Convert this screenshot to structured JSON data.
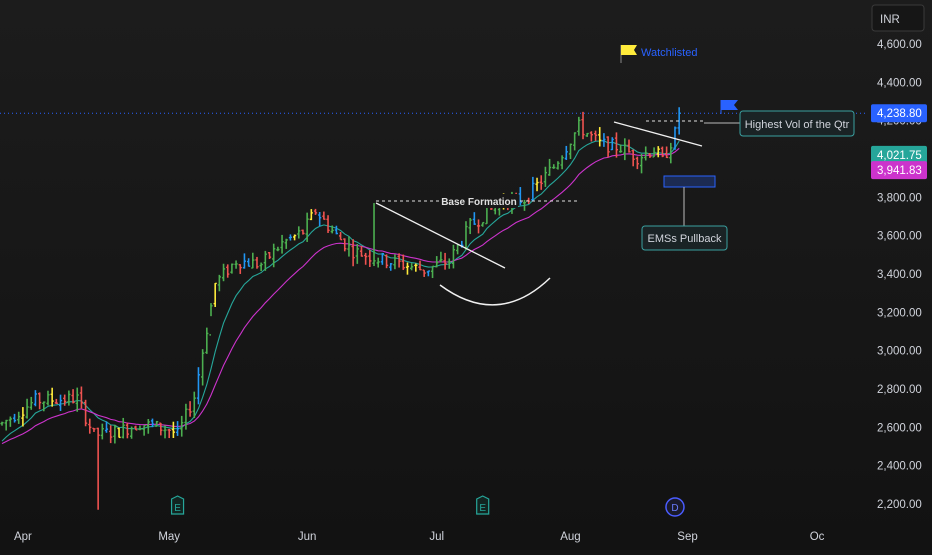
{
  "chart_data": {
    "type": "ohlc",
    "currency": "INR",
    "y_axis": {
      "min": 2150,
      "max": 4770,
      "ticks": [
        "2,200.00",
        "2,400.00",
        "2,600.00",
        "2,800.00",
        "3,000.00",
        "3,200.00",
        "3,400.00",
        "3,600.00",
        "3,800.00",
        "4,000.00",
        "4,200.00",
        "4,400.00",
        "4,600.00"
      ],
      "tick_values": [
        2200,
        2400,
        2600,
        2800,
        3000,
        3200,
        3400,
        3600,
        3800,
        4000,
        4200,
        4400,
        4600
      ]
    },
    "x_axis": {
      "labels": [
        {
          "text": "Apr",
          "bar": 5
        },
        {
          "text": "May",
          "bar": 40
        },
        {
          "text": "Jun",
          "bar": 73
        },
        {
          "text": "Jul",
          "bar": 104
        },
        {
          "text": "Aug",
          "bar": 136
        },
        {
          "text": "Sep",
          "bar": 164
        },
        {
          "text": "Oc",
          "bar": 195
        }
      ]
    },
    "price_labels": [
      {
        "text": "4,238.80",
        "value": 4238.8,
        "color": "#2962ff"
      },
      {
        "text": "4,021.75",
        "value": 4021.75,
        "color": "#26a69a"
      },
      {
        "text": "3,941.83",
        "value": 3941.83,
        "color": "#cc33cc"
      }
    ],
    "current_price_line": 4238.8,
    "annotations": {
      "watchlisted": "Watchlisted",
      "base_formation": "Base Formation",
      "highest_vol": "Highest Vol of the Qtr",
      "ema_pullback": "EMSs Pullback"
    },
    "event_markers": [
      {
        "text": "E",
        "bar": 42
      },
      {
        "text": "E",
        "bar": 115
      },
      {
        "text": "D",
        "bar": 161
      }
    ],
    "colors": {
      "up": "#4caf50",
      "down": "#ef5350",
      "neutral_up": "#2196f3",
      "highlight": "#ffeb3b",
      "ema_fast": "#26a69a",
      "ema_slow": "#cc33cc",
      "price_line": "#2962ff"
    }
  }
}
